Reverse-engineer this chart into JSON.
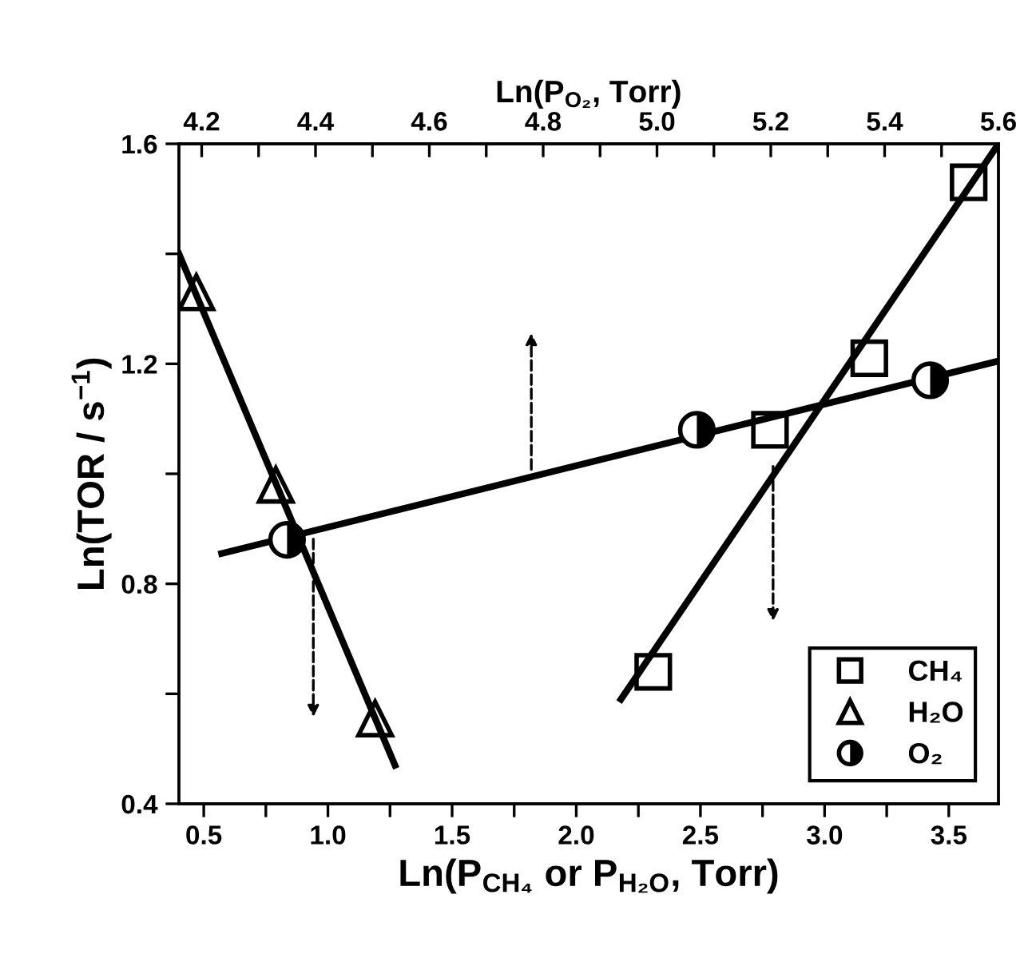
{
  "chart_data": {
    "type": "scatter",
    "xlabel": "Ln(P$_{CH₄}$ or P$_{H₂O}$, Torr)",
    "x2label": "Ln(P$_{O₂}$, Torr)",
    "ylabel": "Ln(TOR / s$^{−1}$)",
    "xlim": [
      0.4,
      3.7
    ],
    "xticks": [
      0.5,
      {
        "value": 0.75,
        "label": null
      },
      {
        "value": 1.0,
        "label": "1.0"
      },
      {
        "value": 1.25,
        "label": null
      },
      1.5,
      {
        "value": 1.75,
        "label": null
      },
      {
        "value": 2.0,
        "label": "2.0"
      },
      {
        "value": 2.25,
        "label": null
      },
      2.5,
      {
        "value": 2.75,
        "label": null
      },
      {
        "value": 3.0,
        "label": "3.0"
      },
      {
        "value": 3.25,
        "label": null
      },
      3.5
    ],
    "x2lim": [
      4.16,
      5.6
    ],
    "x2ticks": [
      4.2,
      {
        "value": 4.3,
        "label": null
      },
      4.4,
      {
        "value": 4.5,
        "label": null
      },
      4.6,
      {
        "value": 4.7,
        "label": null
      },
      4.8,
      {
        "value": 4.9,
        "label": null
      },
      {
        "value": 5.0,
        "label": "5.0"
      },
      {
        "value": 5.1,
        "label": null
      },
      5.2,
      {
        "value": 5.3,
        "label": null
      },
      5.4,
      {
        "value": 5.5,
        "label": null
      },
      5.6
    ],
    "ylim": [
      0.4,
      1.6
    ],
    "yticks": [
      0.4,
      {
        "value": 0.6,
        "label": null
      },
      0.8,
      {
        "value": 1.0,
        "label": null
      },
      1.2,
      {
        "value": 1.4,
        "label": null
      },
      1.6
    ],
    "legend": "bottom right",
    "grid": false,
    "series": [
      {
        "name": "CH₄",
        "marker": "square",
        "color": "#000000",
        "x": [
          2.31,
          2.78,
          3.18,
          3.58
        ],
        "values": [
          0.64,
          1.08,
          1.21,
          1.53
        ]
      },
      {
        "name": "H₂O",
        "marker": "triangle",
        "color": "#000000",
        "x": [
          0.47,
          0.79,
          1.19
        ],
        "values": [
          1.33,
          0.98,
          0.555
        ]
      },
      {
        "name": "O₂",
        "marker": "circle",
        "color": "#000000",
        "axis": "x2",
        "x": [
          4.35,
          5.07,
          5.48
        ],
        "values": [
          0.88,
          1.08,
          1.17
        ]
      },
      {
        "type": "line",
        "line_style": "solid",
        "color": "#000000",
        "x": [
          2.18,
          3.7
        ],
        "values": [
          0.59,
          1.6
        ]
      },
      {
        "type": "line",
        "line_style": "solid",
        "color": "#000000",
        "x": [
          0.4,
          1.27
        ],
        "values": [
          1.4,
          0.47
        ]
      },
      {
        "type": "line",
        "line_style": "solid",
        "color": "#000000",
        "axis": "x2",
        "x": [
          4.235,
          5.6
        ],
        "values": [
          0.855,
          1.205
        ]
      }
    ]
  }
}
